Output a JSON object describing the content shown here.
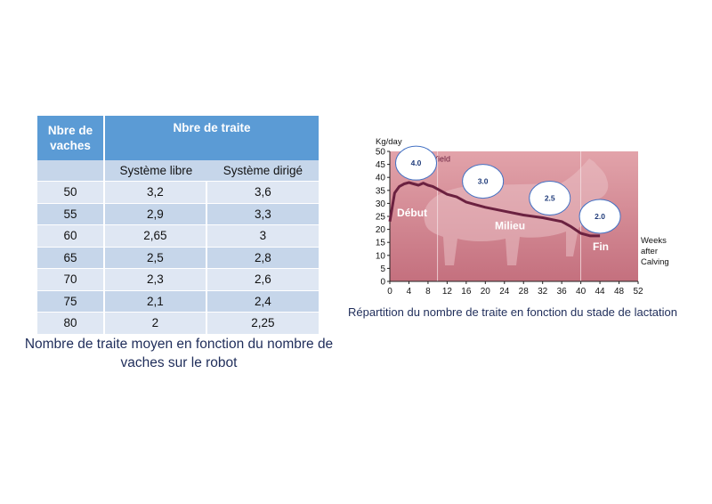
{
  "table": {
    "header_vaches": "Nbre de vaches",
    "header_traite": "Nbre de traite",
    "sub_libre": "Système libre",
    "sub_dirige": "Système dirigé",
    "rows": [
      [
        "50",
        "3,2",
        "3,6"
      ],
      [
        "55",
        "2,9",
        "3,3"
      ],
      [
        "60",
        "2,65",
        "3"
      ],
      [
        "65",
        "2,5",
        "2,8"
      ],
      [
        "70",
        "2,3",
        "2,6"
      ],
      [
        "75",
        "2,1",
        "2,4"
      ],
      [
        "80",
        "2",
        "2,25"
      ]
    ],
    "caption": "Nombre de traite moyen en fonction du nombre de vaches sur le robot"
  },
  "chart_data": {
    "type": "line",
    "ylabel": "Kg/day",
    "xlabel": "Weeks after Calving",
    "xlabel_lines": [
      "Weeks",
      "after",
      "Calving"
    ],
    "x_ticks": [
      0,
      4,
      8,
      12,
      16,
      20,
      24,
      28,
      32,
      36,
      40,
      44,
      48,
      52
    ],
    "y_ticks": [
      0,
      5,
      10,
      15,
      20,
      25,
      30,
      35,
      40,
      45,
      50
    ],
    "xlim": [
      0,
      52
    ],
    "ylim": [
      0,
      50
    ],
    "grid": false,
    "series": [
      {
        "name": "Yield",
        "x": [
          0,
          1,
          2,
          3,
          4,
          5,
          6,
          7,
          8,
          9,
          10,
          12,
          14,
          16,
          18,
          20,
          24,
          28,
          32,
          36,
          38,
          40,
          42,
          44
        ],
        "y": [
          23,
          34,
          36.5,
          37.5,
          38,
          37.5,
          37,
          37.8,
          37,
          36.5,
          35.5,
          33.5,
          32.5,
          30.5,
          29.5,
          28.5,
          27,
          25.5,
          24.5,
          23,
          21,
          18.5,
          17.5,
          17.5
        ]
      }
    ],
    "color": "#6b2140",
    "stages": [
      {
        "label": "Début",
        "x_end": 10
      },
      {
        "label": "Milieu",
        "x_end": 40
      },
      {
        "label": "Fin",
        "x_end": 52
      }
    ],
    "milkings": [
      {
        "label": "4.0",
        "x": 5.5,
        "y": 45.5
      },
      {
        "label": "3.0",
        "x": 19.5,
        "y": 38.5
      },
      {
        "label": "2.5",
        "x": 33.5,
        "y": 32
      },
      {
        "label": "2.0",
        "x": 44,
        "y": 25
      }
    ],
    "caption": "Répartition du nombre de traite en fonction du stade de lactation"
  }
}
